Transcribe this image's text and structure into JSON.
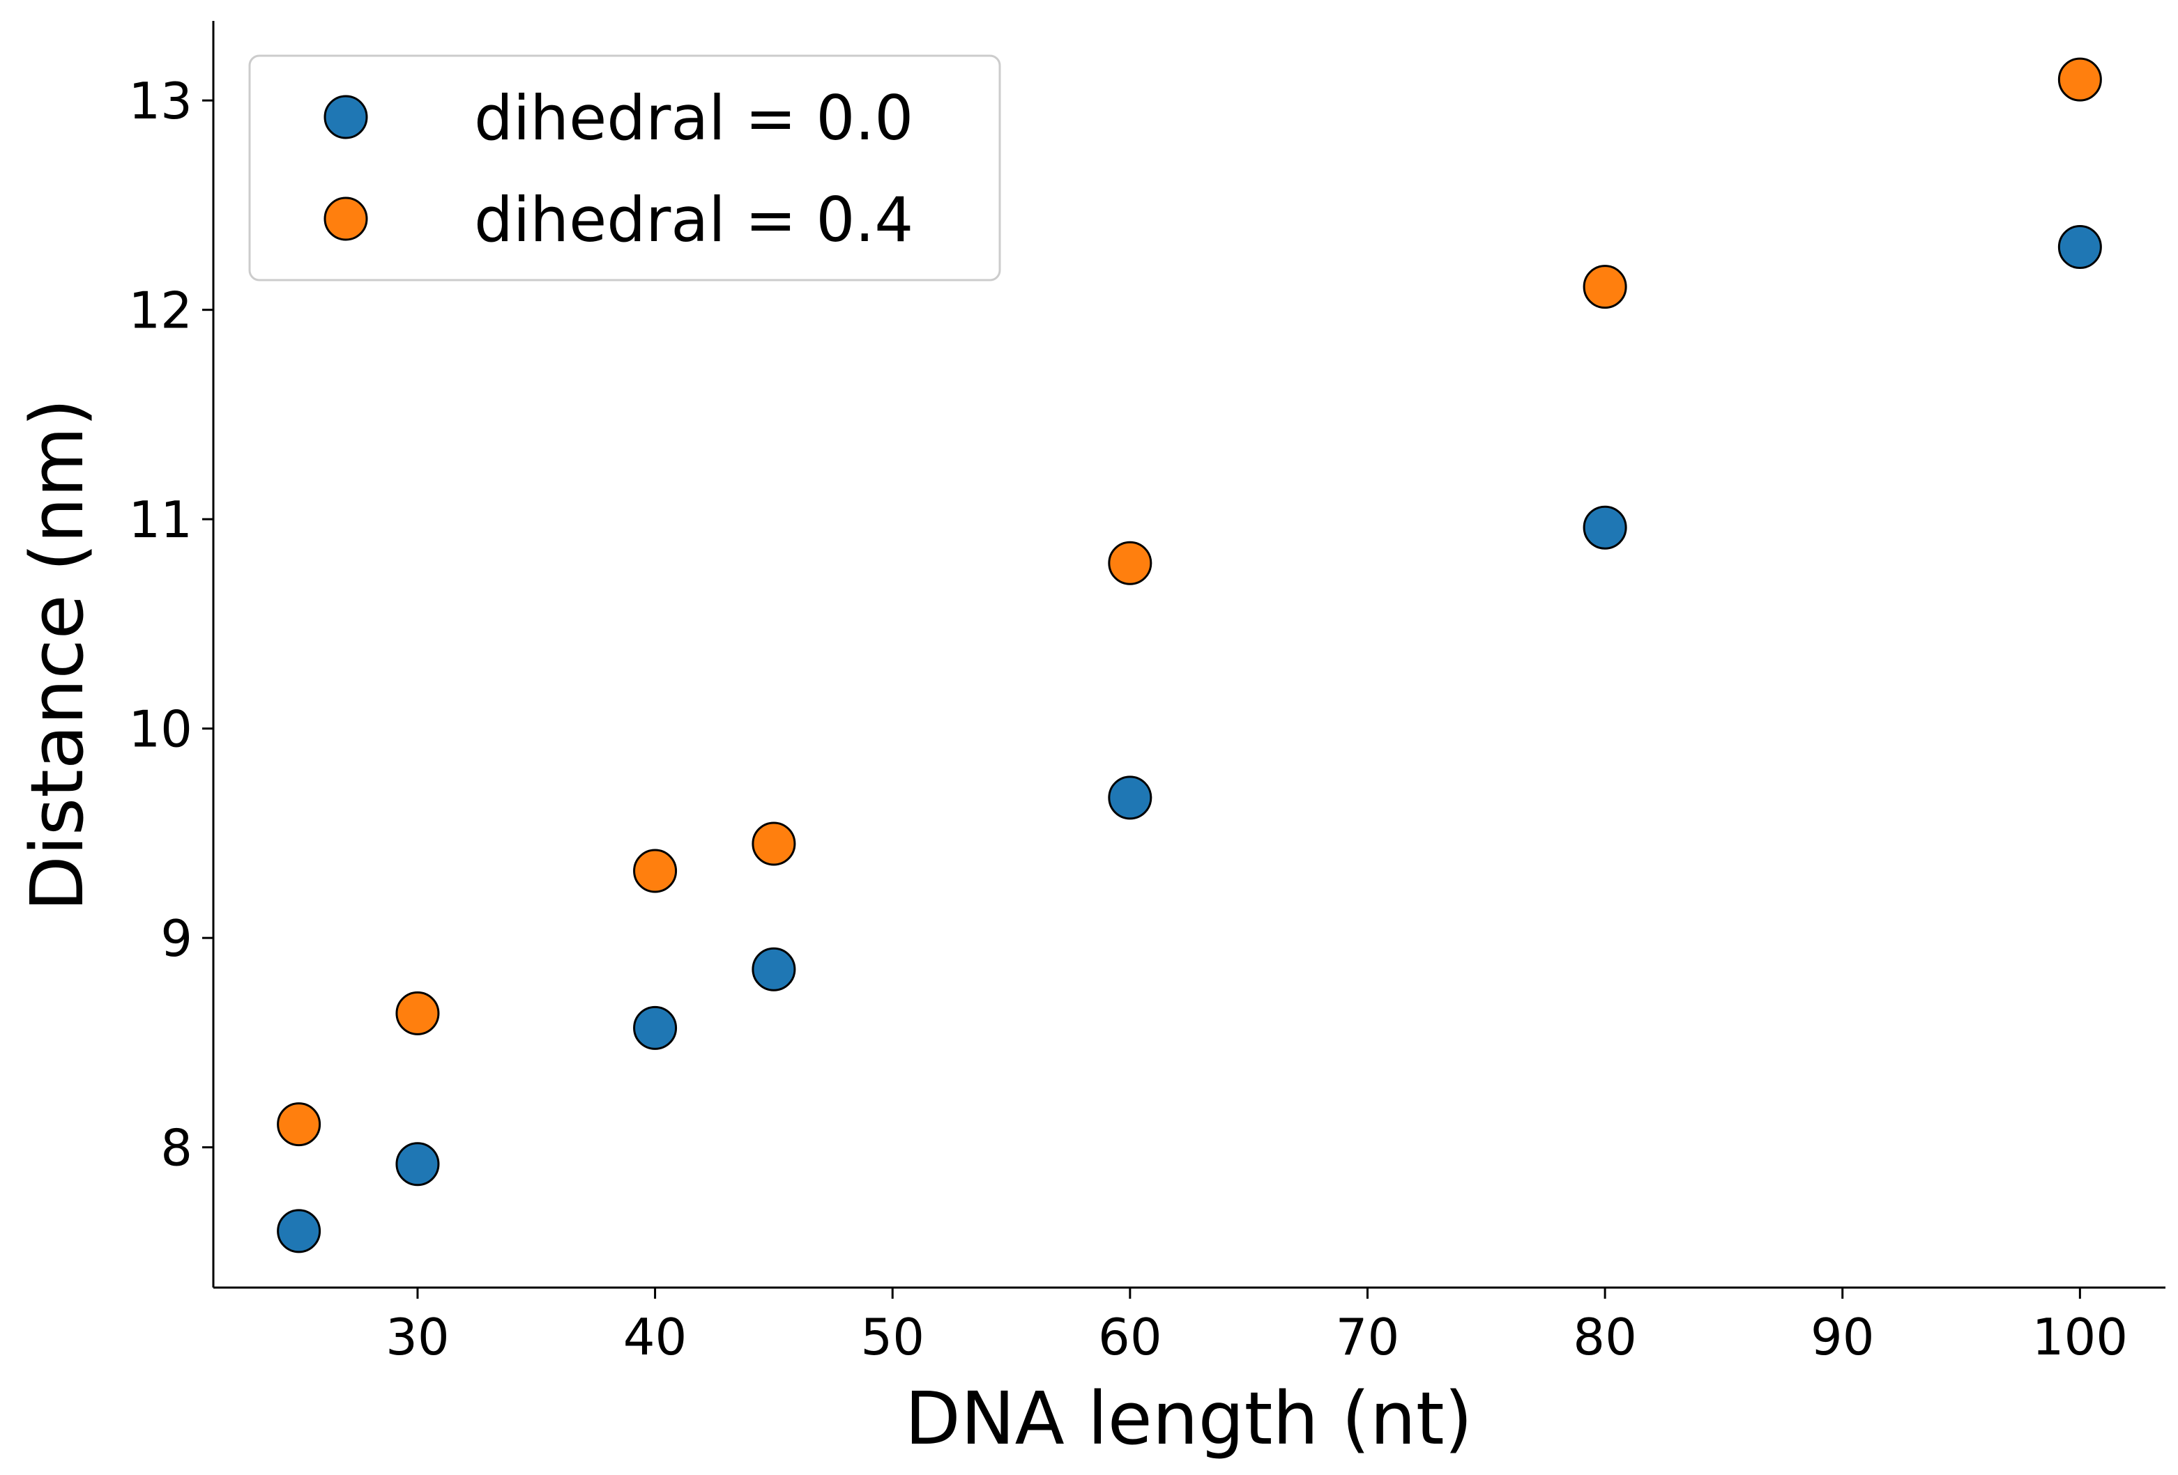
{
  "chart_data": {
    "type": "scatter",
    "title": "",
    "xlabel": "DNA length (nt)",
    "ylabel": "Distance (nm)",
    "xlim": [
      21.4,
      103.6
    ],
    "ylim": [
      7.33,
      13.38
    ],
    "xticks": [
      30,
      40,
      50,
      60,
      70,
      80,
      90,
      100
    ],
    "yticks": [
      8,
      9,
      10,
      11,
      12,
      13
    ],
    "grid": false,
    "legend_position": "top-left",
    "series": [
      {
        "name": "dihedral = 0.0",
        "color": "#1f77b4",
        "x": [
          25,
          30,
          40,
          45,
          60,
          80,
          100
        ],
        "y": [
          7.6,
          7.92,
          8.57,
          8.85,
          9.67,
          10.96,
          12.3
        ]
      },
      {
        "name": "dihedral = 0.4",
        "color": "#ff7f0e",
        "x": [
          25,
          30,
          40,
          45,
          60,
          80,
          100
        ],
        "y": [
          8.11,
          8.64,
          9.32,
          9.45,
          10.79,
          12.11,
          13.1
        ]
      }
    ]
  }
}
